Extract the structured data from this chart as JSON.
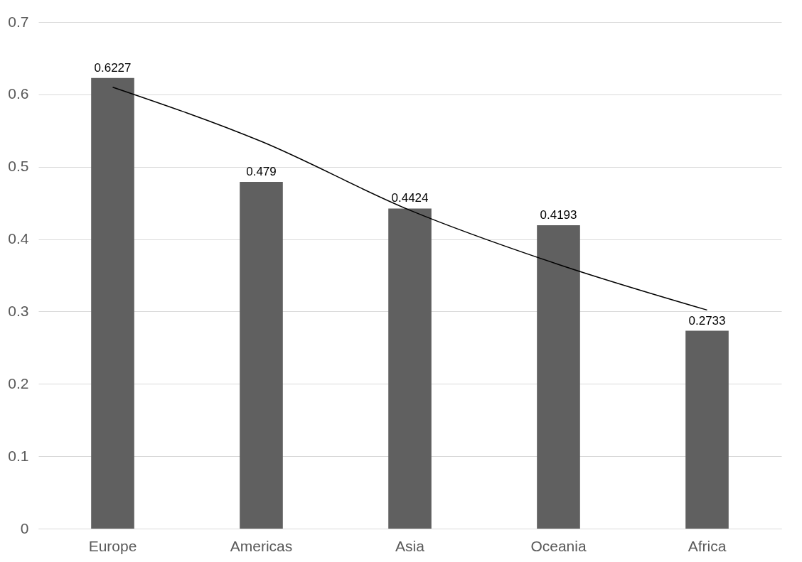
{
  "chart_data": {
    "type": "bar",
    "categories": [
      "Europe",
      "Americas",
      "Asia",
      "Oceania",
      "Africa"
    ],
    "series": [
      {
        "color": "#606060",
        "values": [
          0.6227,
          0.479,
          0.4424,
          0.4193,
          0.2733
        ],
        "value_labels": [
          "0.6227",
          "0.479",
          "0.4424",
          "0.4193",
          "0.2733"
        ]
      },
      {
        "type": "line",
        "color": "#000000",
        "values": [
          0.61,
          0.535,
          0.44,
          0.365,
          0.302
        ]
      }
    ],
    "ylim": [
      0,
      0.7
    ],
    "yticks": [
      0,
      0.1,
      0.2,
      0.3,
      0.4,
      0.5,
      0.6,
      0.7
    ],
    "grid": "y"
  }
}
